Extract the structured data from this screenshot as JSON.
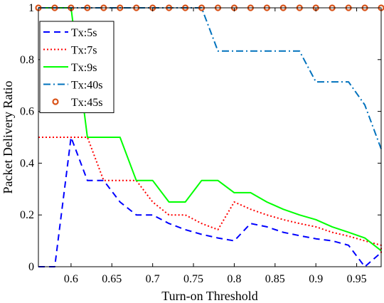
{
  "chart_data": {
    "type": "line",
    "xlabel": "Turn-on Threshold",
    "ylabel": "Packet Delivery Ratio",
    "xlim": [
      0.56,
      0.98
    ],
    "ylim": [
      0,
      1
    ],
    "xticks": [
      "0.6",
      "0.65",
      "0.7",
      "0.75",
      "0.8",
      "0.85",
      "0.9",
      "0.95"
    ],
    "yticks": [
      "0",
      "0.2",
      "0.4",
      "0.6",
      "0.8",
      "1"
    ],
    "xtick_values": [
      0.6,
      0.65,
      0.7,
      0.75,
      0.8,
      0.85,
      0.9,
      0.95
    ],
    "ytick_values": [
      0,
      0.2,
      0.4,
      0.6,
      0.8,
      1
    ],
    "grid": false,
    "legend_position": "top-left",
    "series": [
      {
        "name": "Tx:5s",
        "color": "#0000ff",
        "style": "dashed",
        "points": [
          [
            0.56,
            0
          ],
          [
            0.58,
            0
          ],
          [
            0.6,
            0.5
          ],
          [
            0.62,
            0.333
          ],
          [
            0.64,
            0.333
          ],
          [
            0.66,
            0.25
          ],
          [
            0.68,
            0.2
          ],
          [
            0.7,
            0.2
          ],
          [
            0.72,
            0.167
          ],
          [
            0.74,
            0.143
          ],
          [
            0.76,
            0.125
          ],
          [
            0.78,
            0.111
          ],
          [
            0.8,
            0.1
          ],
          [
            0.82,
            0.167
          ],
          [
            0.84,
            0.154
          ],
          [
            0.86,
            0.133
          ],
          [
            0.88,
            0.12
          ],
          [
            0.9,
            0.108
          ],
          [
            0.92,
            0.1
          ],
          [
            0.94,
            0.083
          ],
          [
            0.96,
            0
          ],
          [
            0.98,
            0.055
          ]
        ]
      },
      {
        "name": "Tx:7s",
        "color": "#ff0000",
        "style": "dotted",
        "points": [
          [
            0.56,
            0.5
          ],
          [
            0.58,
            0.5
          ],
          [
            0.6,
            0.5
          ],
          [
            0.62,
            0.5
          ],
          [
            0.64,
            0.333
          ],
          [
            0.66,
            0.333
          ],
          [
            0.68,
            0.333
          ],
          [
            0.7,
            0.25
          ],
          [
            0.72,
            0.2
          ],
          [
            0.74,
            0.2
          ],
          [
            0.76,
            0.167
          ],
          [
            0.78,
            0.143
          ],
          [
            0.8,
            0.25
          ],
          [
            0.82,
            0.222
          ],
          [
            0.84,
            0.2
          ],
          [
            0.86,
            0.182
          ],
          [
            0.88,
            0.167
          ],
          [
            0.9,
            0.154
          ],
          [
            0.92,
            0.133
          ],
          [
            0.94,
            0.118
          ],
          [
            0.96,
            0.1
          ],
          [
            0.98,
            0.083
          ],
          [
            0.98,
            0.05
          ]
        ]
      },
      {
        "name": "Tx:9s",
        "color": "#00ff00",
        "style": "solid",
        "points": [
          [
            0.56,
            1
          ],
          [
            0.58,
            1
          ],
          [
            0.6,
            1
          ],
          [
            0.62,
            0.5
          ],
          [
            0.64,
            0.5
          ],
          [
            0.66,
            0.5
          ],
          [
            0.68,
            0.333
          ],
          [
            0.7,
            0.333
          ],
          [
            0.72,
            0.25
          ],
          [
            0.74,
            0.25
          ],
          [
            0.76,
            0.333
          ],
          [
            0.78,
            0.333
          ],
          [
            0.8,
            0.286
          ],
          [
            0.82,
            0.286
          ],
          [
            0.84,
            0.25
          ],
          [
            0.86,
            0.222
          ],
          [
            0.88,
            0.2
          ],
          [
            0.9,
            0.182
          ],
          [
            0.92,
            0.154
          ],
          [
            0.94,
            0.133
          ],
          [
            0.96,
            0.111
          ],
          [
            0.98,
            0.062
          ]
        ]
      },
      {
        "name": "Tx:40s",
        "color": "#0072bd",
        "style": "dashdot",
        "points": [
          [
            0.56,
            1
          ],
          [
            0.58,
            1
          ],
          [
            0.6,
            1
          ],
          [
            0.62,
            1
          ],
          [
            0.64,
            1
          ],
          [
            0.66,
            1
          ],
          [
            0.68,
            1
          ],
          [
            0.7,
            1
          ],
          [
            0.72,
            1
          ],
          [
            0.74,
            1
          ],
          [
            0.76,
            1
          ],
          [
            0.78,
            0.833
          ],
          [
            0.8,
            0.833
          ],
          [
            0.82,
            0.833
          ],
          [
            0.84,
            0.833
          ],
          [
            0.86,
            0.833
          ],
          [
            0.88,
            0.833
          ],
          [
            0.9,
            0.714
          ],
          [
            0.92,
            0.714
          ],
          [
            0.94,
            0.714
          ],
          [
            0.96,
            0.625
          ],
          [
            0.98,
            0.455
          ]
        ]
      },
      {
        "name": "Tx:45s",
        "color": "#d95319",
        "style": "markers",
        "points": [
          [
            0.56,
            1
          ],
          [
            0.58,
            1
          ],
          [
            0.6,
            1
          ],
          [
            0.62,
            1
          ],
          [
            0.64,
            1
          ],
          [
            0.66,
            1
          ],
          [
            0.68,
            1
          ],
          [
            0.7,
            1
          ],
          [
            0.72,
            1
          ],
          [
            0.74,
            1
          ],
          [
            0.76,
            1
          ],
          [
            0.78,
            1
          ],
          [
            0.8,
            1
          ],
          [
            0.82,
            1
          ],
          [
            0.84,
            1
          ],
          [
            0.86,
            1
          ],
          [
            0.88,
            1
          ],
          [
            0.9,
            1
          ],
          [
            0.92,
            1
          ],
          [
            0.94,
            1
          ],
          [
            0.96,
            1
          ],
          [
            0.98,
            1
          ]
        ]
      }
    ]
  }
}
